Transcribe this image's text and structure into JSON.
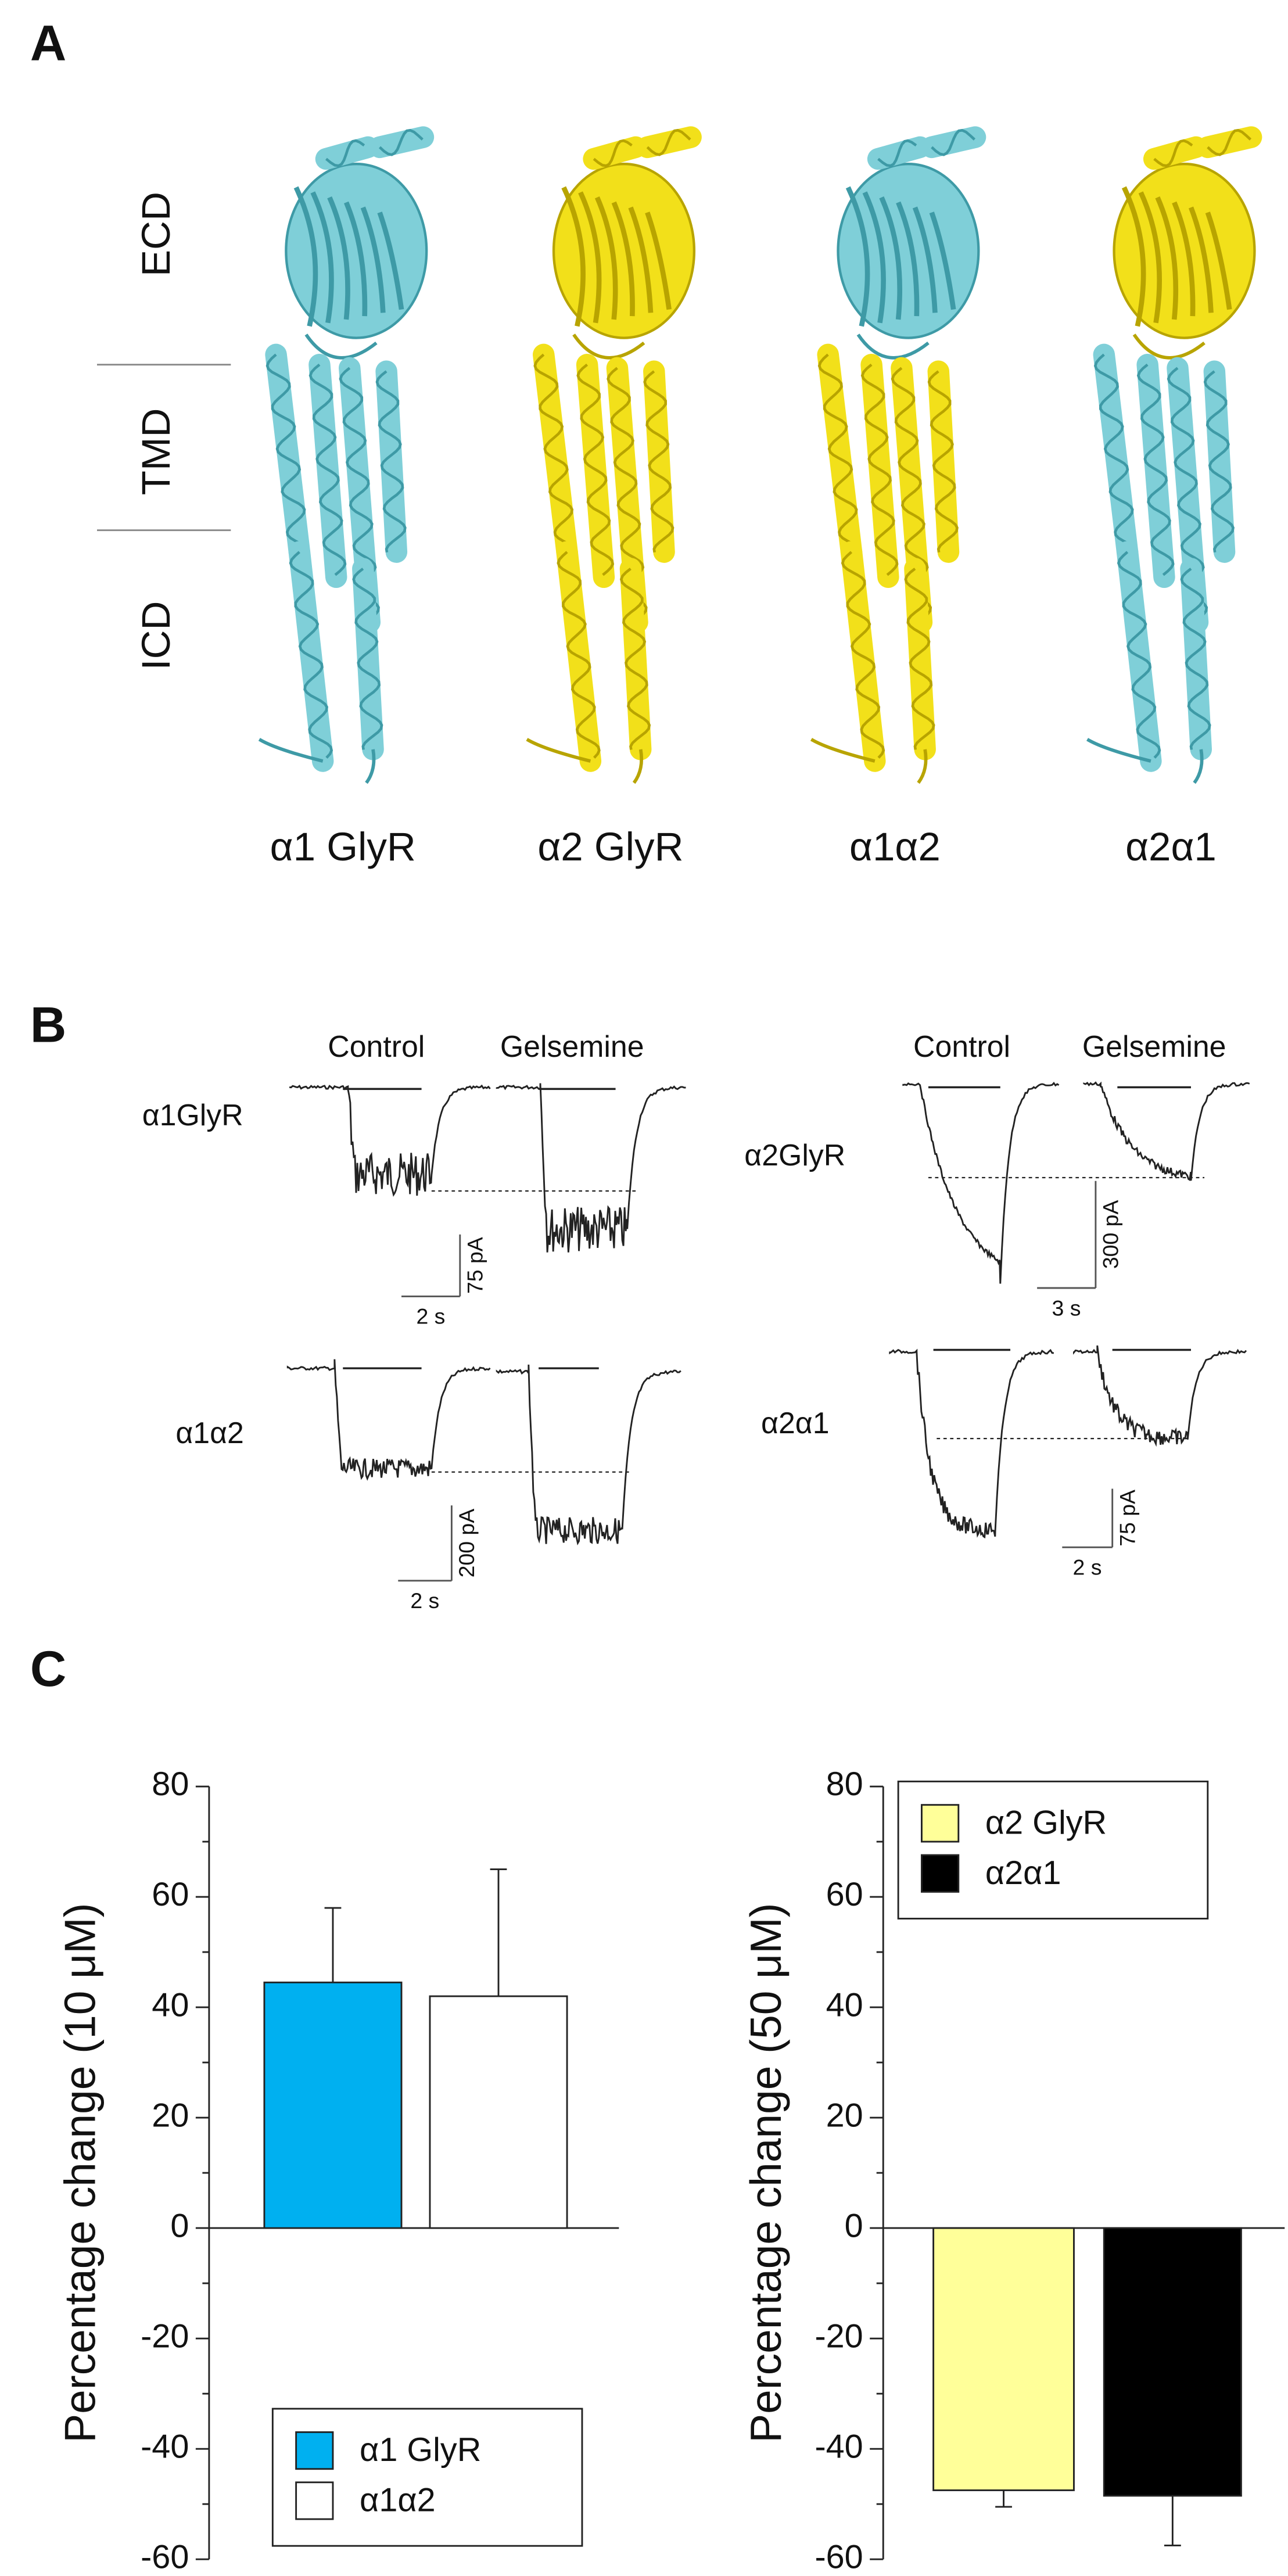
{
  "panel_labels": [
    "A",
    "B",
    "C"
  ],
  "panel_a": {
    "regions": [
      "ECD",
      "TMD",
      "ICD"
    ],
    "constructs": [
      "α1 GlyR",
      "α2 GlyR",
      "α1α2",
      "α2α1"
    ]
  },
  "panel_b": {
    "groups": [
      {
        "conditions": [
          "Control",
          "Gelsemine"
        ],
        "traces": [
          {
            "name": "α1GlyR",
            "current_scale": "75 pA",
            "time_scale": "2 s"
          },
          {
            "name": "α1α2",
            "current_scale": "200 pA",
            "time_scale": "2 s"
          }
        ]
      },
      {
        "conditions": [
          "Control",
          "Gelsemine"
        ],
        "traces": [
          {
            "name": "α2GlyR",
            "current_scale": "300 pA",
            "time_scale": "3 s"
          },
          {
            "name": "α2α1",
            "current_scale": "75 pA",
            "time_scale": "2 s"
          }
        ]
      }
    ]
  },
  "chart_data": [
    {
      "type": "bar",
      "ylabel": "Percentage change (10 μM)",
      "ylim": [
        -60,
        80
      ],
      "yticks": [
        -60,
        -40,
        -20,
        0,
        20,
        40,
        60,
        80
      ],
      "legend": "lower left",
      "series": [
        {
          "name": "α1 GlyR",
          "color": "#00b0f0",
          "values": [
            44.5
          ],
          "errors": [
            13.5
          ]
        },
        {
          "name": "α1α2",
          "color": "#ffffff",
          "values": [
            42
          ],
          "errors": [
            23
          ]
        }
      ]
    },
    {
      "type": "bar",
      "ylabel": "Percentage change (50 μM)",
      "ylim": [
        -60,
        80
      ],
      "yticks": [
        -60,
        -40,
        -20,
        0,
        20,
        40,
        60,
        80
      ],
      "legend": "upper left",
      "series": [
        {
          "name": "α2 GlyR",
          "color": "#ffff99",
          "values": [
            -47.5
          ],
          "errors": [
            3
          ]
        },
        {
          "name": "α2α1",
          "color": "#000000",
          "values": [
            -48.5
          ],
          "errors": [
            9
          ]
        }
      ]
    }
  ]
}
